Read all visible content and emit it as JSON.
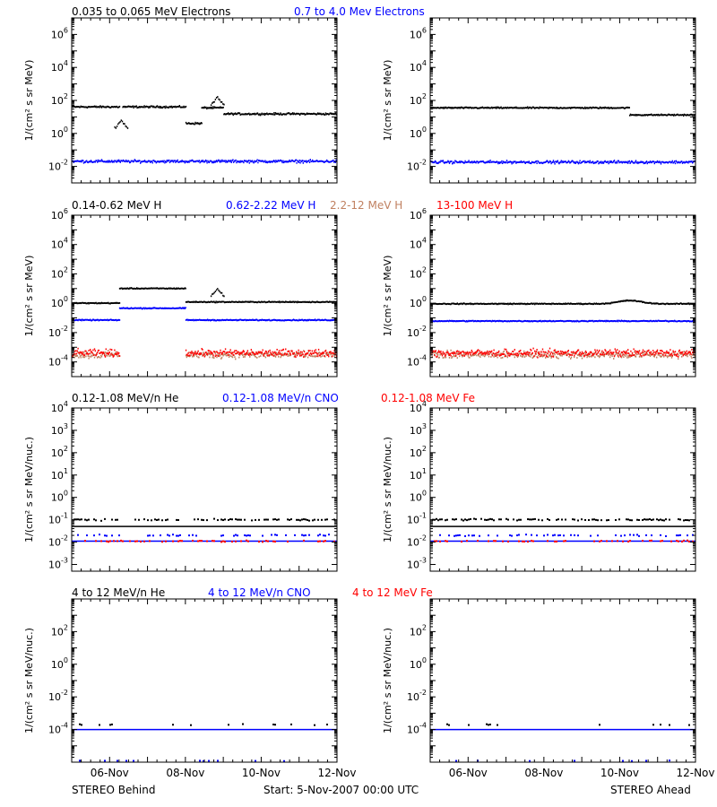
{
  "colors": {
    "black": "#000000",
    "blue": "#0000ff",
    "tan": "#c08060",
    "red": "#ff0000"
  },
  "rows": [
    {
      "header": [
        {
          "text": "0.035 to 0.065 MeV Electrons",
          "color": "#000000"
        },
        {
          "text": "0.7 to 4.0 Mev Electrons",
          "color": "#0000ff"
        }
      ],
      "ylabel": "1/(cm² s sr MeV)"
    },
    {
      "header": [
        {
          "text": "0.14-0.62 MeV H",
          "color": "#000000"
        },
        {
          "text": "0.62-2.22 MeV H",
          "color": "#0000ff"
        },
        {
          "text": "2.2-12 MeV H",
          "color": "#c08060"
        },
        {
          "text": "13-100 MeV H",
          "color": "#ff0000"
        }
      ],
      "ylabel": "1/(cm² s sr MeV)"
    },
    {
      "header": [
        {
          "text": "0.12-1.08 MeV/n He",
          "color": "#000000"
        },
        {
          "text": "0.12-1.08 MeV/n CNO",
          "color": "#0000ff"
        },
        {
          "text": "0.12-1.08 MeV Fe",
          "color": "#ff0000"
        }
      ],
      "ylabel": "1/(cm² s sr MeV/nuc.)"
    },
    {
      "header": [
        {
          "text": "4 to 12 MeV/n He",
          "color": "#000000"
        },
        {
          "text": "4 to 12 MeV/n CNO",
          "color": "#0000ff"
        },
        {
          "text": "4 to 12 MeV Fe",
          "color": "#ff0000"
        }
      ],
      "ylabel": "1/(cm² s sr MeV/nuc.)"
    }
  ],
  "footer": {
    "left": "STEREO Behind",
    "center": "Start:  5-Nov-2007 00:00 UTC",
    "right": "STEREO Ahead"
  },
  "chart_data": [
    {
      "type": "scatter",
      "spacecraft": "STEREO Behind",
      "row": 0,
      "col": 0,
      "y_scale": "log",
      "ylim": [
        0.001,
        10000000
      ],
      "y_ticks": [
        "10^6",
        "10^4",
        "10^2",
        "10^0",
        "10^-2"
      ],
      "x_ticks": [
        "06-Nov",
        "08-Nov",
        "10-Nov",
        "12-Nov"
      ],
      "xlim": [
        "2007-11-05",
        "2007-11-12"
      ],
      "series": [
        {
          "color": "#000000",
          "noise": 0.08,
          "segments": [
            {
              "x": [
                "2007-11-05T00:00",
                "2007-11-06T06:00"
              ],
              "y": 40
            },
            {
              "x": [
                "2007-11-06T08:00",
                "2007-11-08T00:00"
              ],
              "y": 40
            },
            {
              "x": [
                "2007-11-08T00:00",
                "2007-11-08T10:00"
              ],
              "y": 4
            },
            {
              "x": [
                "2007-11-08T10:00",
                "2007-11-09T00:00"
              ],
              "y": 35
            },
            {
              "x": [
                "2007-11-09T00:00",
                "2007-11-12T00:00"
              ],
              "y": 15
            }
          ],
          "spikes": [
            {
              "x": "2007-11-08T20:00",
              "y": 150
            },
            {
              "x": "2007-11-06T07:00",
              "y": 6
            }
          ]
        },
        {
          "color": "#0000ff",
          "noise": 0.12,
          "segments": [
            {
              "x": [
                "2007-11-05T00:00",
                "2007-11-12T00:00"
              ],
              "y": 0.02
            }
          ]
        }
      ]
    },
    {
      "type": "scatter",
      "spacecraft": "STEREO Ahead",
      "row": 0,
      "col": 1,
      "y_scale": "log",
      "ylim": [
        0.001,
        10000000
      ],
      "y_ticks": [
        "10^6",
        "10^4",
        "10^2",
        "10^0",
        "10^-2"
      ],
      "x_ticks": [
        "06-Nov",
        "08-Nov",
        "10-Nov",
        "12-Nov"
      ],
      "xlim": [
        "2007-11-05",
        "2007-11-12"
      ],
      "series": [
        {
          "color": "#000000",
          "noise": 0.06,
          "segments": [
            {
              "x": [
                "2007-11-05T00:00",
                "2007-11-10T06:00"
              ],
              "y": 35
            },
            {
              "x": [
                "2007-11-10T06:00",
                "2007-11-12T00:00"
              ],
              "y": 13
            }
          ]
        },
        {
          "color": "#0000ff",
          "noise": 0.12,
          "segments": [
            {
              "x": [
                "2007-11-05T00:00",
                "2007-11-12T00:00"
              ],
              "y": 0.018
            }
          ]
        }
      ]
    },
    {
      "type": "scatter",
      "spacecraft": "STEREO Behind",
      "row": 1,
      "col": 0,
      "y_scale": "log",
      "ylim": [
        1e-05,
        1000000
      ],
      "y_ticks": [
        "10^6",
        "10^4",
        "10^2",
        "10^0",
        "10^-2",
        "10^-4"
      ],
      "x_ticks": [
        "06-Nov",
        "08-Nov",
        "10-Nov",
        "12-Nov"
      ],
      "xlim": [
        "2007-11-05",
        "2007-11-12"
      ],
      "series": [
        {
          "color": "#000000",
          "noise": 0.05,
          "segments": [
            {
              "x": [
                "2007-11-05T00:00",
                "2007-11-06T06:00"
              ],
              "y": 1.0
            },
            {
              "x": [
                "2007-11-06T06:00",
                "2007-11-08T00:00"
              ],
              "y": 10
            },
            {
              "x": [
                "2007-11-08T00:00",
                "2007-11-12T00:00"
              ],
              "y": 1.2
            }
          ],
          "spikes": [
            {
              "x": "2007-11-08T20:00",
              "y": 9
            }
          ]
        },
        {
          "color": "#0000ff",
          "noise": 0.05,
          "segments": [
            {
              "x": [
                "2007-11-05T00:00",
                "2007-11-06T06:00"
              ],
              "y": 0.07
            },
            {
              "x": [
                "2007-11-06T06:00",
                "2007-11-08T00:00"
              ],
              "y": 0.45
            },
            {
              "x": [
                "2007-11-08T00:00",
                "2007-11-12T00:00"
              ],
              "y": 0.07
            }
          ]
        },
        {
          "color": "#c08060",
          "noise": 0.35,
          "segments": [
            {
              "x": [
                "2007-11-05T00:00",
                "2007-11-06T06:00"
              ],
              "y": 0.0003
            },
            {
              "x": [
                "2007-11-08T00:00",
                "2007-11-12T00:00"
              ],
              "y": 0.0003
            }
          ]
        },
        {
          "color": "#ff0000",
          "noise": 0.35,
          "segments": [
            {
              "x": [
                "2007-11-05T00:00",
                "2007-11-06T06:00"
              ],
              "y": 0.0004
            },
            {
              "x": [
                "2007-11-08T00:00",
                "2007-11-12T00:00"
              ],
              "y": 0.0004
            }
          ]
        }
      ]
    },
    {
      "type": "scatter",
      "spacecraft": "STEREO Ahead",
      "row": 1,
      "col": 1,
      "y_scale": "log",
      "ylim": [
        1e-05,
        1000000
      ],
      "y_ticks": [
        "10^6",
        "10^4",
        "10^2",
        "10^0",
        "10^-2",
        "10^-4"
      ],
      "x_ticks": [
        "06-Nov",
        "08-Nov",
        "10-Nov",
        "12-Nov"
      ],
      "xlim": [
        "2007-11-05",
        "2007-11-12"
      ],
      "series": [
        {
          "color": "#000000",
          "noise": 0.05,
          "segments": [
            {
              "x": [
                "2007-11-05T00:00",
                "2007-11-12T00:00"
              ],
              "y": 0.9
            }
          ],
          "bump": {
            "x": "2007-11-10T06:00",
            "y": 1.5
          }
        },
        {
          "color": "#0000ff",
          "noise": 0.05,
          "segments": [
            {
              "x": [
                "2007-11-05T00:00",
                "2007-11-12T00:00"
              ],
              "y": 0.06
            }
          ]
        },
        {
          "color": "#c08060",
          "noise": 0.35,
          "segments": [
            {
              "x": [
                "2007-11-05T00:00",
                "2007-11-12T00:00"
              ],
              "y": 0.0003
            }
          ]
        },
        {
          "color": "#ff0000",
          "noise": 0.35,
          "segments": [
            {
              "x": [
                "2007-11-05T00:00",
                "2007-11-12T00:00"
              ],
              "y": 0.0004
            }
          ]
        }
      ]
    },
    {
      "type": "scatter",
      "spacecraft": "STEREO Behind",
      "row": 2,
      "col": 0,
      "y_scale": "log",
      "ylim": [
        0.0005,
        10000
      ],
      "y_ticks": [
        "10^4",
        "10^3",
        "10^2",
        "10^1",
        "10^0",
        "10^-1",
        "10^-2",
        "10^-3"
      ],
      "x_ticks": [
        "06-Nov",
        "08-Nov",
        "10-Nov",
        "12-Nov"
      ],
      "xlim": [
        "2007-11-05",
        "2007-11-12"
      ],
      "series": [
        {
          "color": "#000000",
          "kind": "sparse",
          "y": 0.1,
          "density": 0.5
        },
        {
          "color": "#000000",
          "kind": "line",
          "y": 0.05
        },
        {
          "color": "#0000ff",
          "kind": "sparse",
          "y": 0.02,
          "density": 0.3
        },
        {
          "color": "#0000ff",
          "kind": "line",
          "y": 0.011
        },
        {
          "color": "#ff0000",
          "kind": "sparse",
          "y": 0.011,
          "density": 0.3
        }
      ]
    },
    {
      "type": "scatter",
      "spacecraft": "STEREO Ahead",
      "row": 2,
      "col": 1,
      "y_scale": "log",
      "ylim": [
        0.0005,
        10000
      ],
      "y_ticks": [
        "10^4",
        "10^3",
        "10^2",
        "10^1",
        "10^0",
        "10^-1",
        "10^-2",
        "10^-3"
      ],
      "x_ticks": [
        "06-Nov",
        "08-Nov",
        "10-Nov",
        "12-Nov"
      ],
      "xlim": [
        "2007-11-05",
        "2007-11-12"
      ],
      "series": [
        {
          "color": "#000000",
          "kind": "sparse",
          "y": 0.1,
          "density": 0.5
        },
        {
          "color": "#000000",
          "kind": "line",
          "y": 0.05
        },
        {
          "color": "#0000ff",
          "kind": "sparse",
          "y": 0.02,
          "density": 0.3
        },
        {
          "color": "#0000ff",
          "kind": "line",
          "y": 0.011
        },
        {
          "color": "#ff0000",
          "kind": "sparse",
          "y": 0.011,
          "density": 0.3
        }
      ]
    },
    {
      "type": "scatter",
      "spacecraft": "STEREO Behind",
      "row": 3,
      "col": 0,
      "y_scale": "log",
      "ylim": [
        1e-06,
        10000
      ],
      "y_ticks": [
        "10^2",
        "10^0",
        "10^-2",
        "10^-4"
      ],
      "x_ticks": [
        "06-Nov",
        "08-Nov",
        "10-Nov",
        "12-Nov"
      ],
      "xlim": [
        "2007-11-05",
        "2007-11-12"
      ],
      "series": [
        {
          "color": "#0000ff",
          "kind": "line",
          "y": 0.0001
        },
        {
          "color": "#000000",
          "kind": "sparse",
          "y": 0.0002,
          "density": 0.12
        },
        {
          "color": "#0000ff",
          "kind": "sparse",
          "y": 1.2e-06,
          "density": 0.05
        }
      ]
    },
    {
      "type": "scatter",
      "spacecraft": "STEREO Ahead",
      "row": 3,
      "col": 1,
      "y_scale": "log",
      "ylim": [
        1e-06,
        10000
      ],
      "y_ticks": [
        "10^2",
        "10^0",
        "10^-2",
        "10^-4"
      ],
      "x_ticks": [
        "06-Nov",
        "08-Nov",
        "10-Nov",
        "12-Nov"
      ],
      "xlim": [
        "2007-11-05",
        "2007-11-12"
      ],
      "series": [
        {
          "color": "#0000ff",
          "kind": "line",
          "y": 0.0001
        },
        {
          "color": "#000000",
          "kind": "sparse",
          "y": 0.0002,
          "density": 0.12
        },
        {
          "color": "#0000ff",
          "kind": "sparse",
          "y": 1.2e-06,
          "density": 0.05
        }
      ]
    }
  ]
}
